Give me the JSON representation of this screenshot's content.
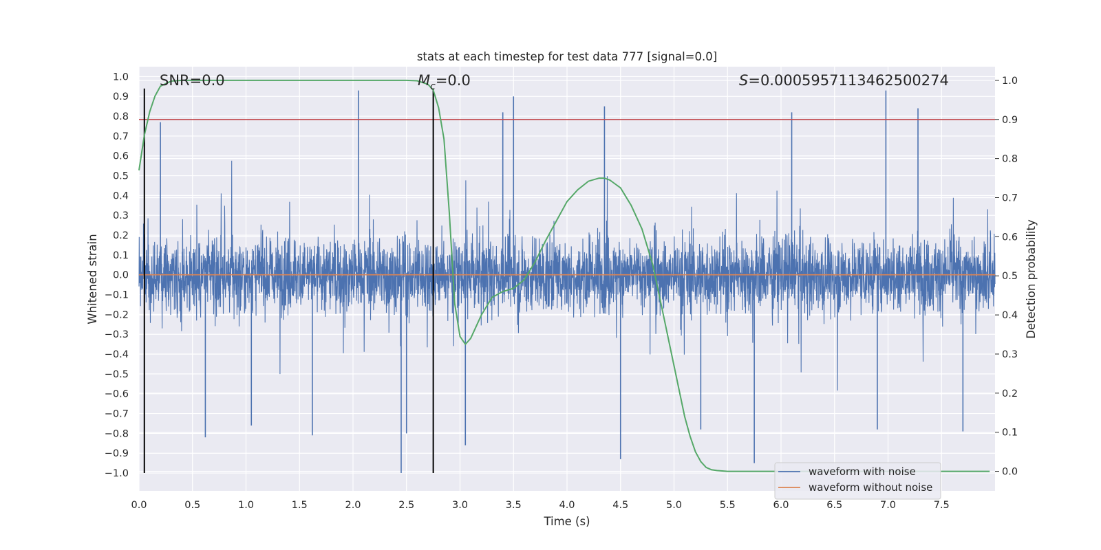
{
  "chart_data": {
    "type": "line",
    "title": "stats at each timestep for test data 777 [signal=0.0]",
    "xlabel": "Time (s)",
    "ylabel_left": "Whitened strain",
    "ylabel_right": "Detection probability",
    "xlim": [
      0.0,
      8.0
    ],
    "ylim_left": [
      -1.09,
      1.05
    ],
    "ylim_right": [
      -0.05,
      1.035
    ],
    "x_ticks": [
      "0.0",
      "0.5",
      "1.0",
      "1.5",
      "2.0",
      "2.5",
      "3.0",
      "3.5",
      "4.0",
      "4.5",
      "5.0",
      "5.5",
      "6.0",
      "6.5",
      "7.0",
      "7.5"
    ],
    "x_tick_values": [
      0.0,
      0.5,
      1.0,
      1.5,
      2.0,
      2.5,
      3.0,
      3.5,
      4.0,
      4.5,
      5.0,
      5.5,
      6.0,
      6.5,
      7.0,
      7.5
    ],
    "y_ticks_left": [
      "1.0",
      "0.9",
      "0.8",
      "0.7",
      "0.6",
      "0.5",
      "0.4",
      "0.3",
      "0.2",
      "0.1",
      "0.0",
      "−0.1",
      "−0.2",
      "−0.3",
      "−0.4",
      "−0.5",
      "−0.6",
      "−0.7",
      "−0.8",
      "−0.9",
      "−1.0"
    ],
    "y_tick_values_left": [
      1.0,
      0.9,
      0.8,
      0.7,
      0.6,
      0.5,
      0.4,
      0.3,
      0.2,
      0.1,
      0.0,
      -0.1,
      -0.2,
      -0.3,
      -0.4,
      -0.5,
      -0.6,
      -0.7,
      -0.8,
      -0.9,
      -1.0
    ],
    "y_ticks_right": [
      "1.0",
      "0.9",
      "0.8",
      "0.7",
      "0.6",
      "0.5",
      "0.4",
      "0.3",
      "0.2",
      "0.1",
      "0.0"
    ],
    "y_tick_values_right": [
      1.0,
      0.9,
      0.8,
      0.7,
      0.6,
      0.5,
      0.4,
      0.3,
      0.2,
      0.1,
      0.0
    ],
    "annotations": {
      "snr": "SNR=0.0",
      "mc_symbol": "M",
      "mc_sub": "c",
      "mc_value": "=0.0",
      "s_symbol": "S",
      "s_value": "=0.0005957113462500274"
    },
    "noise_waveform": {
      "name": "waveform with noise",
      "color": "#4c72b0",
      "description_level": "dense noise between about -0.42 and 0.35 with spikes reaching -1.0 and 0.93",
      "peak_spikes": [
        {
          "x": 0.2,
          "y": 0.77
        },
        {
          "x": 0.62,
          "y": -0.82
        },
        {
          "x": 1.05,
          "y": -0.76
        },
        {
          "x": 1.62,
          "y": -0.81
        },
        {
          "x": 2.05,
          "y": 0.93
        },
        {
          "x": 2.45,
          "y": -1.0
        },
        {
          "x": 2.5,
          "y": -0.8
        },
        {
          "x": 3.05,
          "y": -0.86
        },
        {
          "x": 3.4,
          "y": 0.82
        },
        {
          "x": 3.5,
          "y": 0.9
        },
        {
          "x": 4.35,
          "y": 0.85
        },
        {
          "x": 4.5,
          "y": -0.93
        },
        {
          "x": 5.25,
          "y": -0.78
        },
        {
          "x": 5.75,
          "y": -0.95
        },
        {
          "x": 6.1,
          "y": 0.82
        },
        {
          "x": 6.9,
          "y": -0.78
        },
        {
          "x": 6.98,
          "y": 0.93
        },
        {
          "x": 7.28,
          "y": 0.84
        },
        {
          "x": 7.7,
          "y": -0.79
        }
      ]
    },
    "clean_waveform": {
      "name": "waveform without noise",
      "color": "#dd8452",
      "y": 0.0
    },
    "detection_probability": {
      "color": "#55a868",
      "x": [
        0.0,
        0.05,
        0.1,
        0.15,
        0.2,
        0.3,
        0.4,
        0.6,
        1.0,
        1.5,
        2.0,
        2.5,
        2.6,
        2.7,
        2.75,
        2.8,
        2.85,
        2.9,
        2.95,
        3.0,
        3.05,
        3.1,
        3.15,
        3.2,
        3.3,
        3.4,
        3.5,
        3.6,
        3.7,
        3.8,
        3.9,
        4.0,
        4.1,
        4.2,
        4.3,
        4.35,
        4.4,
        4.5,
        4.6,
        4.7,
        4.8,
        4.9,
        5.0,
        5.1,
        5.15,
        5.2,
        5.25,
        5.3,
        5.35,
        5.4,
        5.5,
        6.0,
        7.0,
        7.95
      ],
      "y": [
        0.77,
        0.86,
        0.92,
        0.96,
        0.985,
        0.998,
        1.0,
        1.0,
        1.0,
        1.0,
        1.0,
        1.0,
        0.999,
        0.99,
        0.975,
        0.93,
        0.85,
        0.66,
        0.43,
        0.345,
        0.325,
        0.34,
        0.37,
        0.4,
        0.445,
        0.46,
        0.468,
        0.49,
        0.535,
        0.59,
        0.64,
        0.69,
        0.72,
        0.742,
        0.75,
        0.75,
        0.745,
        0.725,
        0.68,
        0.62,
        0.53,
        0.4,
        0.27,
        0.14,
        0.09,
        0.05,
        0.025,
        0.01,
        0.004,
        0.002,
        0.0,
        0.0,
        0.0,
        0.0
      ]
    },
    "threshold_line": {
      "color": "#c44e52",
      "y_right": 0.9
    },
    "vertical_markers": [
      0.05,
      2.75
    ],
    "legend": {
      "placement": "lower-right",
      "entries": [
        {
          "label": "waveform with noise",
          "color": "#4c72b0"
        },
        {
          "label": "waveform without noise",
          "color": "#dd8452"
        }
      ]
    }
  }
}
